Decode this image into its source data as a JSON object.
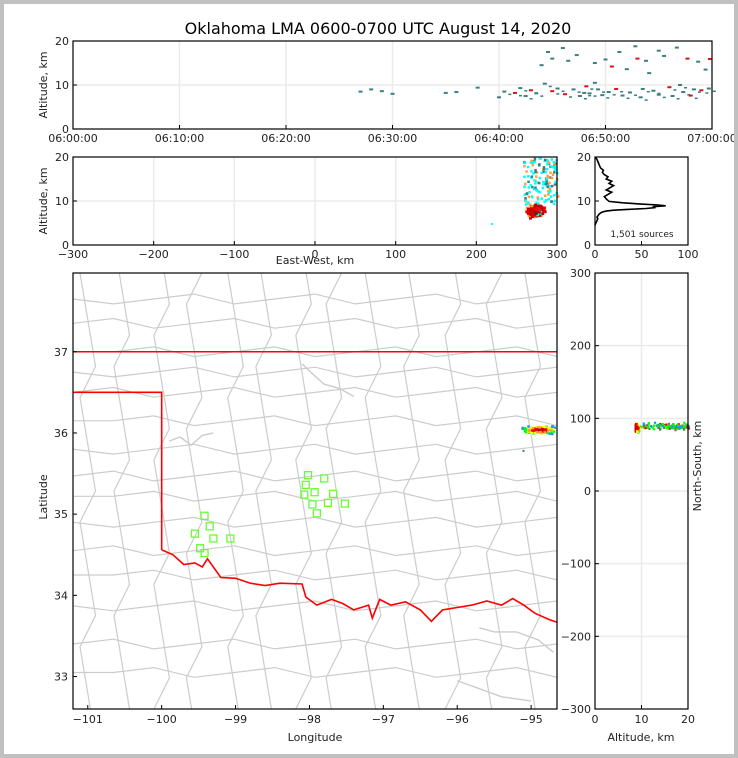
{
  "title": "Oklahoma LMA 0600-0700 UTC August 14, 2020",
  "colors": {
    "grid": "#ebebeb",
    "county": "#cccccc",
    "state": "#ff0000",
    "station": "#66ff33",
    "time_old": "#3a8080",
    "time_new": "#e01010"
  },
  "chart_data": [
    {
      "name": "time-height",
      "type": "scatter",
      "ylabel": "Altitude, km",
      "xlabel": "",
      "xlim": [
        "06:00:00",
        "07:00:00"
      ],
      "ylim": [
        0,
        20
      ],
      "x_ticks": [
        "06:00:00",
        "06:10:00",
        "06:20:00",
        "06:30:00",
        "06:40:00",
        "06:50:00",
        "07:00:00"
      ],
      "y_ticks": [
        "0",
        "10",
        "20"
      ],
      "grid": true,
      "series": [
        {
          "name": "sources",
          "points_minutes_km": [
            [
              27,
              8.5
            ],
            [
              28,
              9
            ],
            [
              29,
              8.6
            ],
            [
              30,
              8
            ],
            [
              35,
              8.2
            ],
            [
              36,
              8.4
            ],
            [
              38,
              9.4
            ],
            [
              40,
              7.2
            ],
            [
              40.5,
              8.5
            ],
            [
              41.5,
              8.2
            ],
            [
              42,
              9.3
            ],
            [
              42.5,
              7.5
            ],
            [
              43,
              8.8
            ],
            [
              43.5,
              8.1
            ],
            [
              44,
              14.5
            ],
            [
              44.3,
              10.3
            ],
            [
              44.6,
              17.5
            ],
            [
              45,
              16
            ],
            [
              45,
              8.6
            ],
            [
              45.5,
              9.2
            ],
            [
              46,
              18.4
            ],
            [
              46.2,
              7.9
            ],
            [
              46.5,
              15.5
            ],
            [
              47,
              9
            ],
            [
              47.3,
              16.8
            ],
            [
              47.6,
              7.5
            ],
            [
              48,
              8.2
            ],
            [
              48.2,
              9.7
            ],
            [
              48.5,
              8.1
            ],
            [
              49,
              15
            ],
            [
              49,
              10.5
            ],
            [
              49.3,
              9
            ],
            [
              49.7,
              7.7
            ],
            [
              50,
              15.8
            ],
            [
              50.3,
              8.4
            ],
            [
              50.6,
              14.2
            ],
            [
              51,
              9.1
            ],
            [
              51.3,
              17.5
            ],
            [
              51.6,
              7.6
            ],
            [
              52,
              13.6
            ],
            [
              52.3,
              8.3
            ],
            [
              52.8,
              18.8
            ],
            [
              53,
              16
            ],
            [
              53.3,
              7.2
            ],
            [
              53.5,
              9.1
            ],
            [
              53.8,
              15.5
            ],
            [
              54.1,
              12.7
            ],
            [
              54.5,
              8.7
            ],
            [
              55,
              17.8
            ],
            [
              55,
              7.8
            ],
            [
              55.5,
              16.6
            ],
            [
              56,
              9.5
            ],
            [
              56.3,
              7.5
            ],
            [
              56.7,
              18.5
            ],
            [
              57,
              10
            ],
            [
              57.3,
              8.4
            ],
            [
              57.7,
              16
            ],
            [
              58,
              7.6
            ],
            [
              58.3,
              9
            ],
            [
              58.7,
              15.3
            ],
            [
              59,
              8.8
            ],
            [
              59.4,
              13.5
            ],
            [
              59.7,
              9.2
            ],
            [
              59.8,
              15.9
            ]
          ]
        }
      ]
    },
    {
      "name": "east-west-vs-altitude",
      "type": "scatter",
      "ylabel": "Altitude, km",
      "xlabel": "East-West, km",
      "xlim": [
        -300,
        300
      ],
      "ylim": [
        0,
        20
      ],
      "x_ticks": [
        "−300",
        "−200",
        "−100",
        "0",
        "100",
        "200",
        "300"
      ],
      "y_ticks": [
        "0",
        "10",
        "20"
      ],
      "grid": true,
      "series": [
        {
          "name": "sources",
          "cluster_center_km": [
            272,
            8
          ],
          "upper_spread_km": [
            [
              255,
              300
            ],
            [
              9,
              20
            ]
          ]
        }
      ]
    },
    {
      "name": "altitude-histogram",
      "type": "line",
      "xlabel": "",
      "ylabel": "",
      "xlim": [
        0,
        100
      ],
      "ylim": [
        0,
        20
      ],
      "x_ticks": [
        "0",
        "50",
        "100"
      ],
      "y_ticks": [
        "0",
        "10",
        "20"
      ],
      "annotation": "1,501 sources",
      "x": [
        0,
        1,
        2,
        3,
        2,
        3,
        4,
        5,
        6,
        8,
        12,
        20,
        35,
        55,
        65,
        62,
        76,
        68,
        50,
        30,
        15,
        12,
        10,
        14,
        18,
        12,
        16,
        20,
        15,
        18,
        12,
        14,
        10,
        8,
        9,
        6,
        5,
        4,
        3,
        2,
        0
      ],
      "y": [
        4.5,
        5,
        5.5,
        6,
        6.3,
        6.6,
        6.9,
        7.1,
        7.3,
        7.5,
        7.7,
        7.9,
        8.1,
        8.3,
        8.5,
        8.7,
        8.9,
        9.1,
        9.3,
        9.6,
        9.9,
        10.5,
        11,
        11.5,
        12,
        12.5,
        13,
        13.5,
        14,
        14.5,
        15,
        15.5,
        16,
        16.5,
        17,
        17.5,
        18,
        18.5,
        19,
        19.5,
        20
      ]
    },
    {
      "name": "plan-view-map",
      "type": "scatter",
      "xlabel": "Longitude",
      "ylabel": "Latitude",
      "xlim": [
        -101.2,
        -94.65
      ],
      "ylim": [
        32.6,
        37.97
      ],
      "x_ticks": [
        "−101",
        "−100",
        "−99",
        "−98",
        "−97",
        "−96",
        "−95"
      ],
      "y_ticks": [
        "33",
        "34",
        "35",
        "36",
        "37"
      ],
      "stations": [
        [
          -99.42,
          34.98
        ],
        [
          -99.35,
          34.85
        ],
        [
          -99.55,
          34.76
        ],
        [
          -99.3,
          34.7
        ],
        [
          -99.07,
          34.7
        ],
        [
          -99.48,
          34.58
        ],
        [
          -99.42,
          34.52
        ],
        [
          -98.02,
          35.48
        ],
        [
          -97.8,
          35.44
        ],
        [
          -98.05,
          35.36
        ],
        [
          -97.93,
          35.27
        ],
        [
          -98.07,
          35.24
        ],
        [
          -97.68,
          35.25
        ],
        [
          -97.96,
          35.12
        ],
        [
          -97.75,
          35.14
        ],
        [
          -97.52,
          35.13
        ],
        [
          -97.9,
          35.01
        ]
      ],
      "lightning_cluster": {
        "lon": -94.9,
        "lat": 36.05
      }
    },
    {
      "name": "altitude-vs-north-south",
      "type": "scatter",
      "xlabel": "Altitude, km",
      "ylabel": "North-South, km",
      "xlim": [
        0,
        20
      ],
      "ylim": [
        -300,
        300
      ],
      "x_ticks": [
        "0",
        "10",
        "20"
      ],
      "y_ticks": [
        "−300",
        "−200",
        "−100",
        "0",
        "100",
        "200",
        "300"
      ],
      "series": [
        {
          "name": "sources",
          "cluster_center": [
            9,
            88
          ],
          "tail_alt_km": [
            8,
            20
          ]
        }
      ]
    }
  ]
}
